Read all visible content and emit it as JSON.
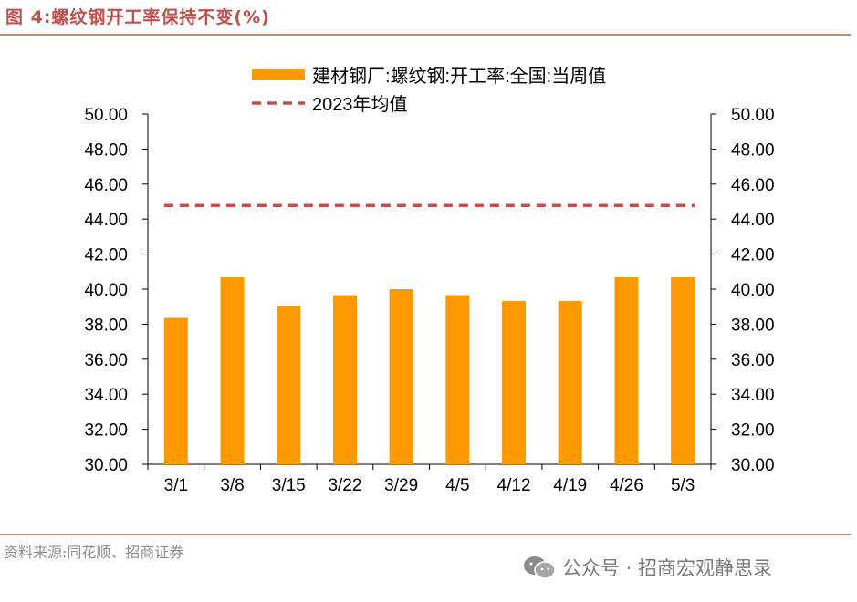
{
  "header": {
    "title": "图 4:螺纹钢开工率保持不变(%)"
  },
  "footer": {
    "source": "资料来源:同花顺、招商证券",
    "watermark": "公众号 · 招商宏观静思录",
    "watermark_icon": "wechat-icon"
  },
  "chart_data": {
    "type": "bar",
    "categories": [
      "3/1",
      "3/8",
      "3/15",
      "3/22",
      "3/29",
      "4/5",
      "4/12",
      "4/19",
      "4/26",
      "5/3"
    ],
    "series": [
      {
        "name": "建材钢厂:螺纹钢:开工率:全国:当周值",
        "type": "bar",
        "color": "#ff9900",
        "values": [
          38.36,
          40.68,
          39.04,
          39.66,
          40.0,
          39.66,
          39.32,
          39.32,
          40.68,
          40.68
        ]
      },
      {
        "name": "2023年均值",
        "type": "line",
        "style": "dashed",
        "color": "#c0504d",
        "value": 44.78
      }
    ],
    "ylim": [
      30,
      50
    ],
    "yticks": [
      "30.00",
      "32.00",
      "34.00",
      "36.00",
      "38.00",
      "40.00",
      "42.00",
      "44.00",
      "46.00",
      "48.00",
      "50.00"
    ],
    "secondary_y": true,
    "grid": false,
    "legend_position": "top-center"
  }
}
